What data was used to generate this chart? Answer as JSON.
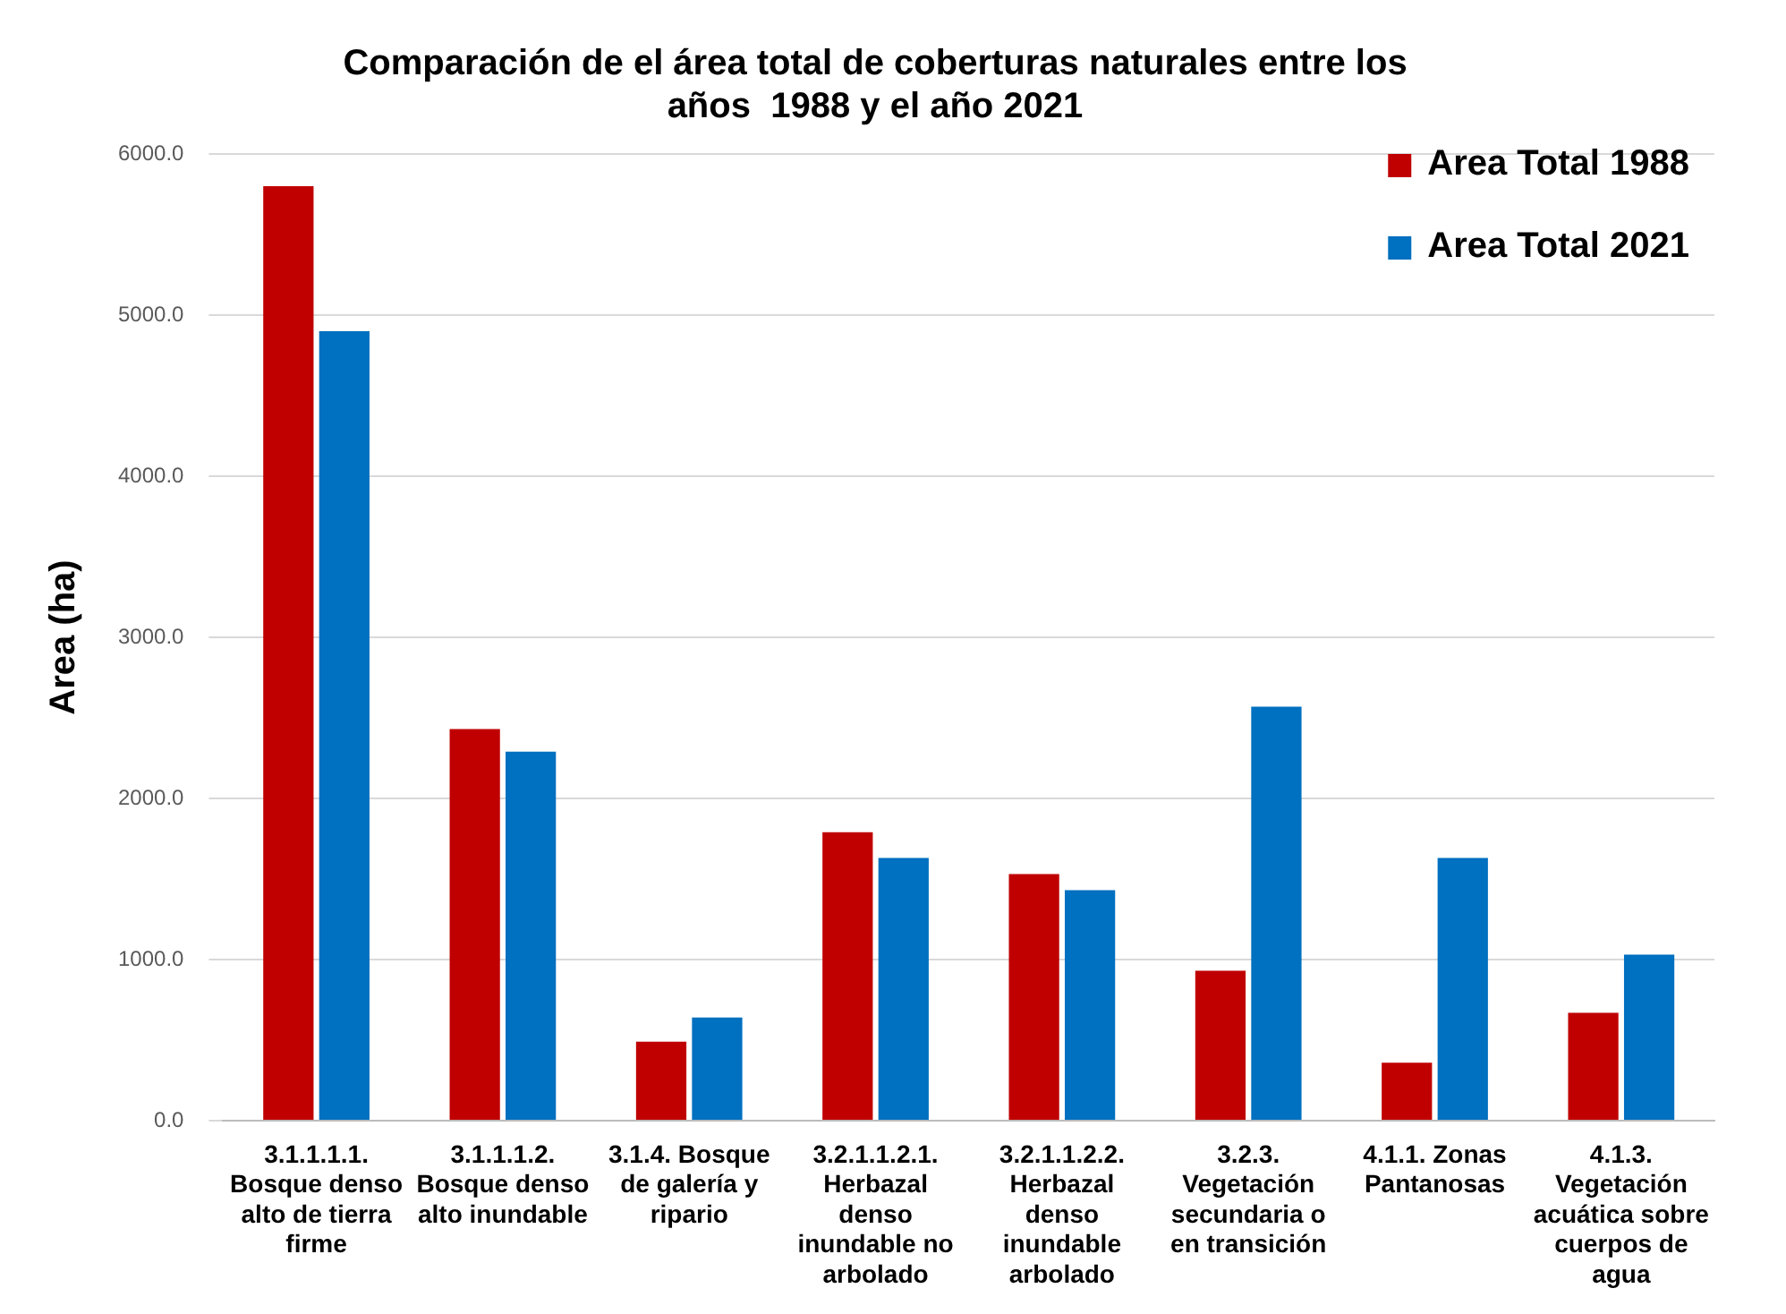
{
  "chart_data": {
    "type": "bar",
    "title": "Comparación de el área total de coberturas naturales entre los años  1988 y el año 2021",
    "ylabel": "Area (ha)",
    "categories": [
      "3.1.1.1.1. Bosque denso alto de tierra firme",
      "3.1.1.1.2. Bosque denso alto inundable",
      "3.1.4. Bosque de galería y ripario",
      "3.2.1.1.2.1. Herbazal denso inundable no arbolado",
      "3.2.1.1.2.2. Herbazal denso inundable arbolado",
      "3.2.3. Vegetación secundaria o en transición",
      "4.1.1. Zonas Pantanosas",
      "4.1.3. Vegetación acuática sobre cuerpos de agua"
    ],
    "series": [
      {
        "name": "Area Total 1988",
        "color": "#c00000",
        "values": [
          5800,
          2430,
          490,
          1790,
          1530,
          930,
          360,
          670
        ]
      },
      {
        "name": "Area Total 2021",
        "color": "#0070c0",
        "values": [
          4900,
          2290,
          640,
          1630,
          1430,
          2570,
          1630,
          1030
        ]
      }
    ],
    "ylim": [
      0,
      6000
    ],
    "yticks": [
      {
        "value": 0,
        "label": "0.0"
      },
      {
        "value": 1000,
        "label": "1000.0"
      },
      {
        "value": 2000,
        "label": "2000.0"
      },
      {
        "value": 3000,
        "label": "3000.0"
      },
      {
        "value": 4000,
        "label": "4000.0"
      },
      {
        "value": 5000,
        "label": "5000.0"
      },
      {
        "value": 6000,
        "label": "6000.0"
      }
    ],
    "grid": "y",
    "legend": "top right"
  }
}
